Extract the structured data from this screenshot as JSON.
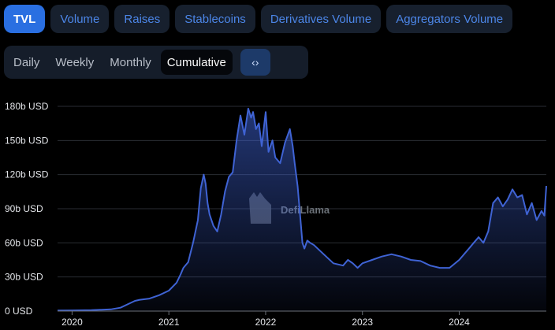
{
  "tabs": [
    {
      "label": "TVL",
      "active": true
    },
    {
      "label": "Volume",
      "active": false
    },
    {
      "label": "Raises",
      "active": false
    },
    {
      "label": "Stablecoins",
      "active": false
    },
    {
      "label": "Derivatives Volume",
      "active": false
    },
    {
      "label": "Aggregators Volume",
      "active": false
    }
  ],
  "periods": [
    {
      "label": "Daily",
      "active": false
    },
    {
      "label": "Weekly",
      "active": false
    },
    {
      "label": "Monthly",
      "active": false
    },
    {
      "label": "Cumulative",
      "active": true
    }
  ],
  "embed_icon": "code-brackets-icon",
  "watermark": {
    "text": "DefiLlama",
    "icon": "llama-logo-icon"
  },
  "colors": {
    "line": "#3f63d4",
    "active_tab": "#2a6fe1",
    "tab_text": "#4c86e8"
  },
  "chart_data": {
    "type": "area",
    "title": "",
    "xlabel": "",
    "ylabel": "",
    "y_unit": "USD",
    "ylim": [
      0,
      180
    ],
    "yticks": [
      0,
      30,
      60,
      90,
      120,
      150,
      180
    ],
    "ytick_labels": [
      "0 USD",
      "30b USD",
      "60b USD",
      "90b USD",
      "120b USD",
      "150b USD",
      "180b USD"
    ],
    "xlim": [
      2019.85,
      2024.9
    ],
    "xticks": [
      2020,
      2021,
      2022,
      2023,
      2024
    ],
    "xtick_labels": [
      "2020",
      "2021",
      "2022",
      "2023",
      "2024"
    ],
    "grid": true,
    "legend": "none",
    "series": [
      {
        "values_unit": "billion USD",
        "x": [
          2019.85,
          2020.0,
          2020.2,
          2020.4,
          2020.5,
          2020.6,
          2020.65,
          2020.7,
          2020.8,
          2020.9,
          2021.0,
          2021.08,
          2021.12,
          2021.15,
          2021.2,
          2021.25,
          2021.3,
          2021.33,
          2021.36,
          2021.38,
          2021.4,
          2021.42,
          2021.46,
          2021.5,
          2021.54,
          2021.58,
          2021.62,
          2021.66,
          2021.7,
          2021.74,
          2021.78,
          2021.82,
          2021.85,
          2021.87,
          2021.9,
          2021.93,
          2021.96,
          2022.0,
          2022.03,
          2022.07,
          2022.1,
          2022.15,
          2022.2,
          2022.25,
          2022.28,
          2022.3,
          2022.33,
          2022.36,
          2022.38,
          2022.4,
          2022.43,
          2022.46,
          2022.5,
          2022.6,
          2022.7,
          2022.8,
          2022.85,
          2022.9,
          2022.95,
          2023.0,
          2023.1,
          2023.2,
          2023.3,
          2023.4,
          2023.5,
          2023.6,
          2023.7,
          2023.8,
          2023.9,
          2024.0,
          2024.1,
          2024.15,
          2024.2,
          2024.25,
          2024.3,
          2024.35,
          2024.4,
          2024.45,
          2024.5,
          2024.55,
          2024.6,
          2024.65,
          2024.7,
          2024.75,
          2024.8,
          2024.85,
          2024.88,
          2024.9
        ],
        "values": [
          0.5,
          0.6,
          0.8,
          1.5,
          3,
          7,
          9,
          10,
          11,
          14,
          18,
          25,
          32,
          38,
          43,
          60,
          80,
          108,
          120,
          112,
          95,
          85,
          75,
          70,
          85,
          105,
          118,
          122,
          150,
          172,
          155,
          178,
          170,
          175,
          160,
          165,
          145,
          175,
          140,
          150,
          135,
          130,
          148,
          160,
          145,
          130,
          110,
          80,
          60,
          55,
          62,
          60,
          58,
          50,
          42,
          40,
          45,
          42,
          38,
          42,
          45,
          48,
          50,
          48,
          45,
          44,
          40,
          38,
          38,
          45,
          55,
          60,
          65,
          60,
          70,
          95,
          100,
          92,
          98,
          107,
          100,
          102,
          85,
          95,
          80,
          88,
          84,
          110
        ]
      }
    ]
  }
}
